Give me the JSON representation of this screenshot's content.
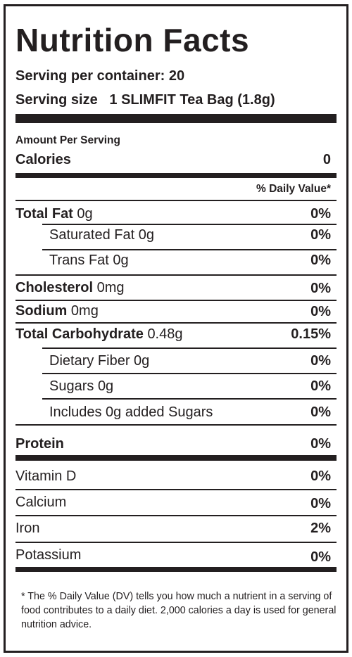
{
  "title": "Nutrition Facts",
  "servings_per_container": "Serving per container: 20",
  "serving_size_label": "Serving size",
  "serving_size_value": "1 SLIMFIT Tea Bag (1.8g)",
  "amount_per_serving": "Amount Per Serving",
  "calories_label": "Calories",
  "calories_value": "0",
  "daily_value_header": "% Daily Value*",
  "nutrients": [
    {
      "name": "Total Fat",
      "amount": "0g",
      "dv": "0%"
    },
    {
      "name": "Saturated Fat",
      "amount": "0g",
      "dv": "0%"
    },
    {
      "name": "Trans Fat",
      "amount": "0g",
      "dv": "0%"
    },
    {
      "name": "Cholesterol",
      "amount": "0mg",
      "dv": "0%"
    },
    {
      "name": "Sodium",
      "amount": "0mg",
      "dv": "0%"
    },
    {
      "name": "Total Carbohydrate",
      "amount": "0.48g",
      "dv": "0.15%"
    },
    {
      "name": "Dietary Fiber",
      "amount": "0g",
      "dv": "0%"
    },
    {
      "name": "Sugars",
      "amount": "0g",
      "dv": "0%"
    },
    {
      "name": "Includes 0g added Sugars",
      "amount": "",
      "dv": "0%"
    },
    {
      "name": "Protein",
      "amount": "",
      "dv": "0%"
    }
  ],
  "vitamins": [
    {
      "name": "Vitamin D",
      "dv": "0%"
    },
    {
      "name": "Calcium",
      "dv": "0%"
    },
    {
      "name": "Iron",
      "dv": "2%"
    },
    {
      "name": "Potassium",
      "dv": "0%"
    }
  ],
  "footnote": "* The % Daily Value (DV) tells you how much a nutrient in a serving of food contributes to a daily diet. 2,000 calories a day is used for general nutrition advice."
}
